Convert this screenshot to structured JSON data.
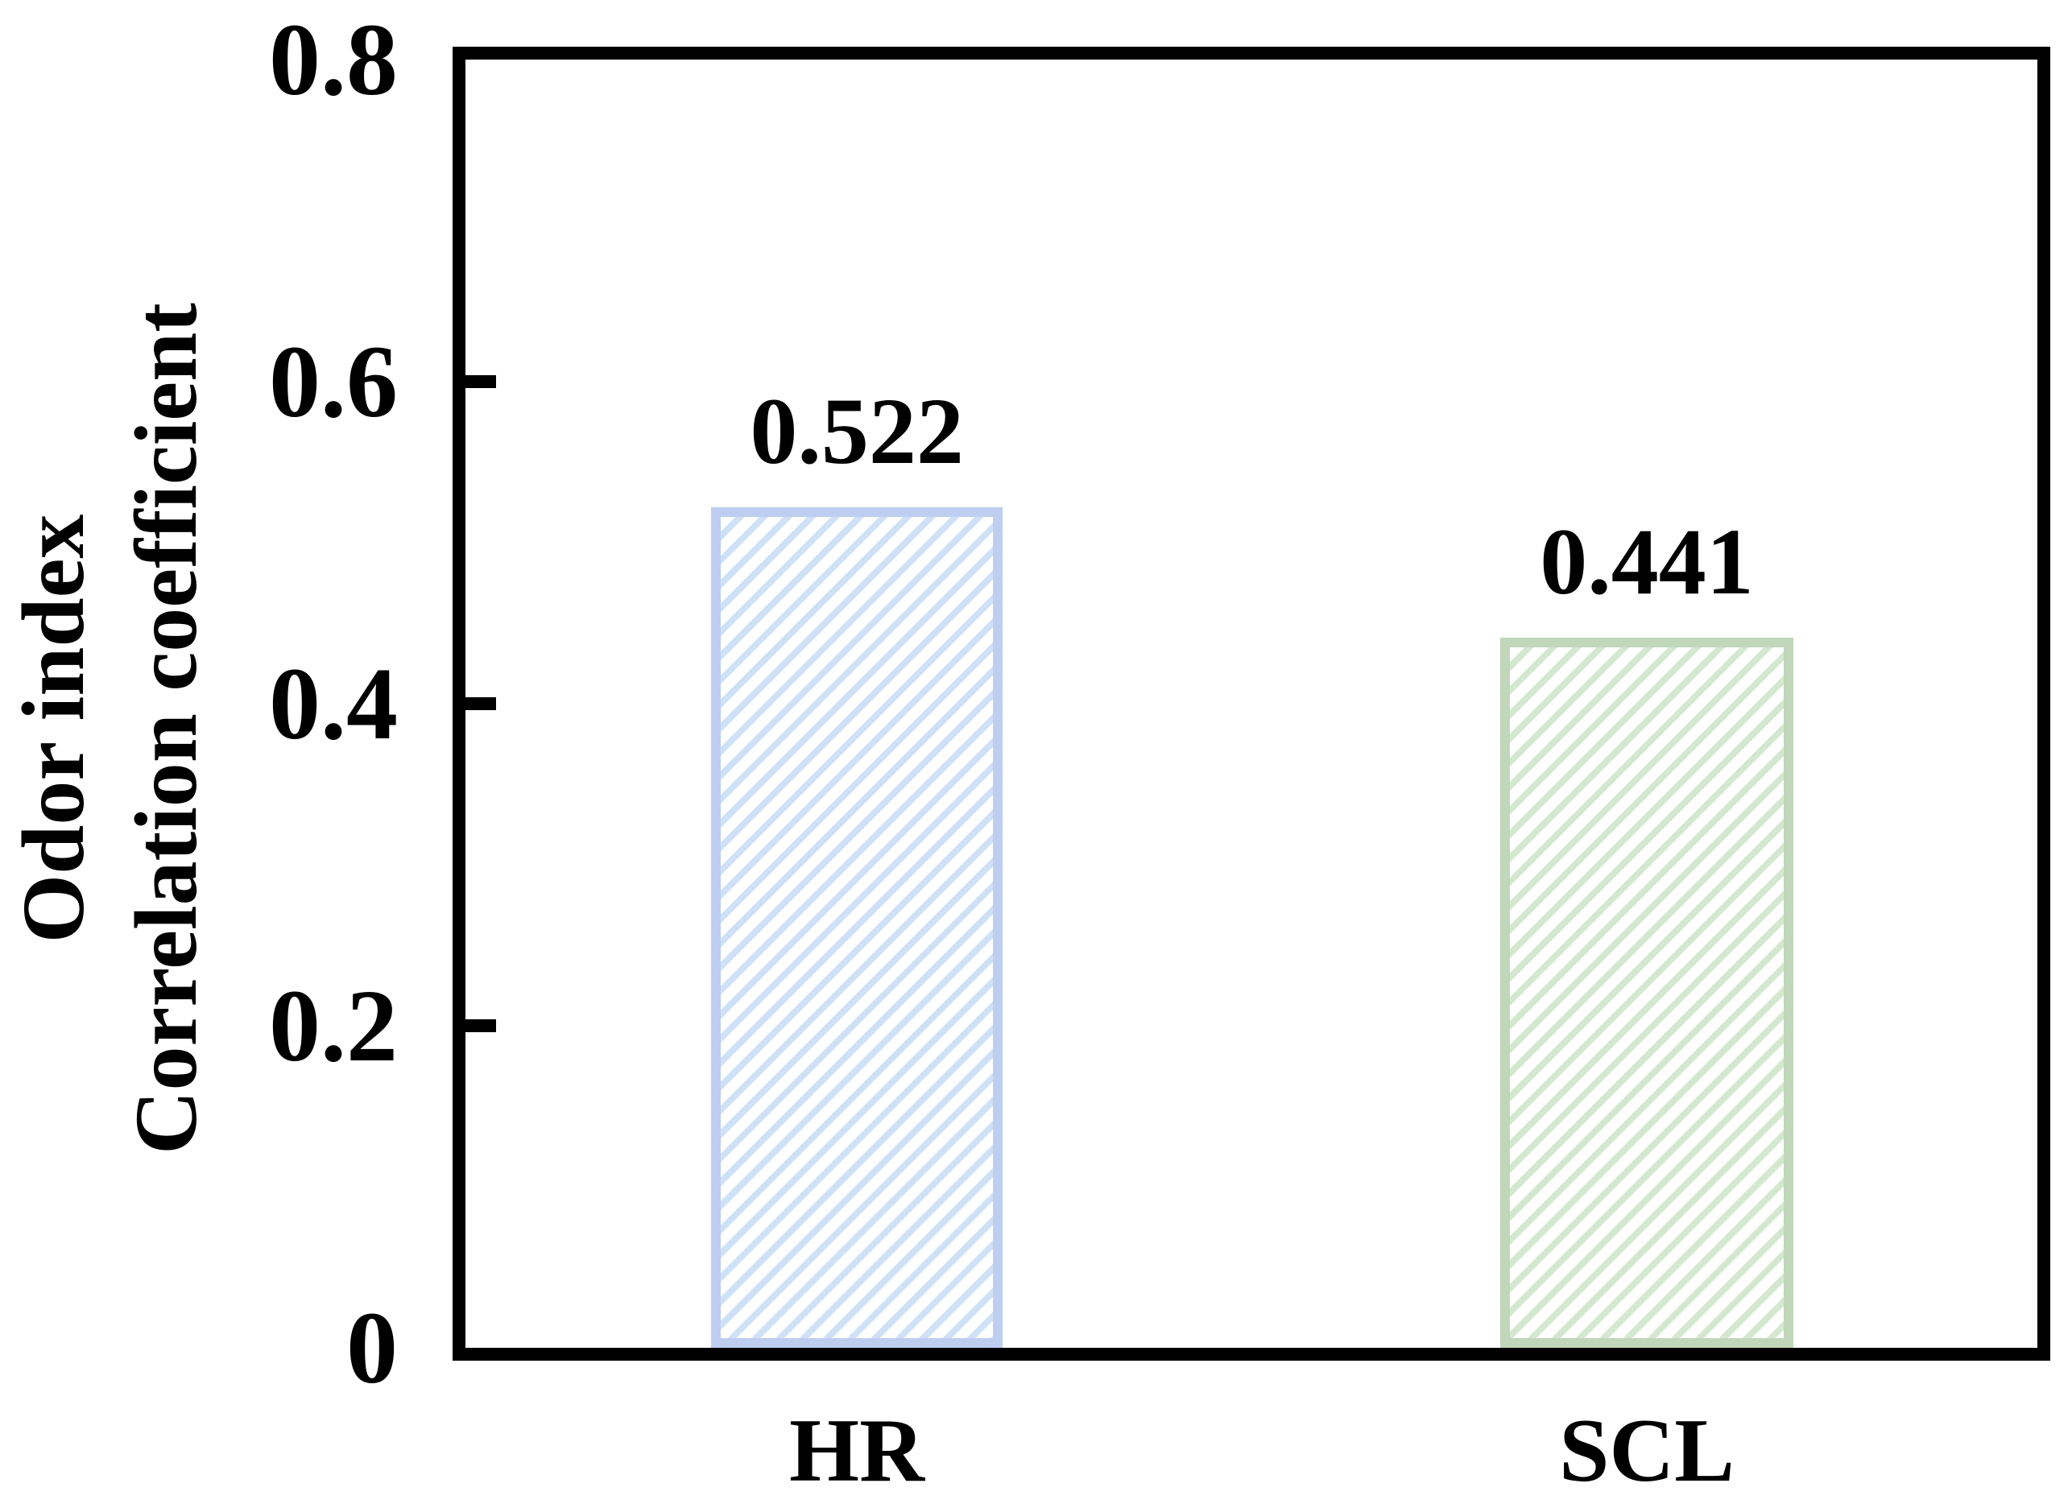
{
  "figure": {
    "background": "#ffffff",
    "text_color": "#000000",
    "axis_color": "#000000"
  },
  "chart_data": {
    "type": "bar",
    "categories": [
      "HR",
      "SCL"
    ],
    "values": [
      0.522,
      0.441
    ],
    "bar_labels": [
      "0.522",
      "0.441"
    ],
    "title": "",
    "xlabel": "",
    "ylabel_lines": [
      "Odor index",
      "Correlation coefficient"
    ],
    "ylim": [
      0,
      0.8
    ],
    "yticks": [
      {
        "value": 0.8,
        "label": "0.8"
      },
      {
        "value": 0.6,
        "label": "0.6"
      },
      {
        "value": 0.4,
        "label": "0.4"
      },
      {
        "value": 0.2,
        "label": "0.2"
      },
      {
        "value": 0.0,
        "label": "0"
      }
    ],
    "grid": false,
    "legend": false,
    "hatch_pattern": "diagonal-forward",
    "bar_styles": [
      {
        "edge": "#bdcef1",
        "hatch": "#cfe1f7",
        "fill": "#ffffff"
      },
      {
        "edge": "#c0d7ba",
        "hatch": "#d4e8d0",
        "fill": "#ffffff"
      }
    ]
  }
}
